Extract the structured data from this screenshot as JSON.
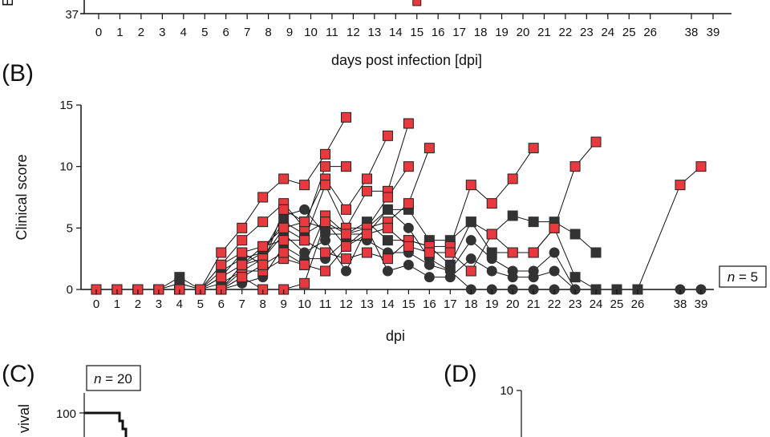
{
  "colors": {
    "red_marker": "#e8393e",
    "dark_marker": "#333333",
    "line": "#111111"
  },
  "panel_a": {
    "label": "",
    "ylabel_fragment": "E",
    "y_tick": "37",
    "xlabel": "days post infection [dpi]",
    "x_ticks": [
      "0",
      "1",
      "2",
      "3",
      "4",
      "5",
      "6",
      "7",
      "8",
      "9",
      "10",
      "11",
      "12",
      "13",
      "14",
      "15",
      "16",
      "17",
      "18",
      "19",
      "20",
      "21",
      "22",
      "23",
      "24",
      "25",
      "26",
      "38",
      "39"
    ],
    "visible_points": [
      {
        "day": 15,
        "marker": "red-square"
      }
    ]
  },
  "chart_data": [
    {
      "type": "line",
      "panel": "(B)",
      "ylabel": "Clinical score",
      "xlabel": "dpi",
      "annotation": "n = 5",
      "annotation_n": "n",
      "annotation_rest": " = 5",
      "x_ticks": [
        "0",
        "1",
        "2",
        "3",
        "4",
        "5",
        "6",
        "7",
        "8",
        "9",
        "10",
        "11",
        "12",
        "13",
        "14",
        "15",
        "16",
        "17",
        "18",
        "19",
        "20",
        "21",
        "22",
        "23",
        "24",
        "25",
        "26",
        "38",
        "39"
      ],
      "y_ticks": [
        "0",
        "5",
        "10",
        "15"
      ],
      "ylim": [
        0,
        15
      ],
      "grid": false,
      "series": [
        {
          "marker": "red-square",
          "points": [
            [
              0,
              0
            ],
            [
              1,
              0
            ],
            [
              2,
              0
            ],
            [
              3,
              0
            ],
            [
              4,
              0
            ],
            [
              5,
              0
            ],
            [
              6,
              3
            ],
            [
              7,
              5
            ],
            [
              8,
              7.5
            ],
            [
              9,
              9
            ],
            [
              10,
              8.5
            ],
            [
              11,
              11
            ],
            [
              12,
              14
            ]
          ]
        },
        {
          "marker": "red-square",
          "points": [
            [
              0,
              0
            ],
            [
              1,
              0
            ],
            [
              2,
              0
            ],
            [
              3,
              0
            ],
            [
              4,
              0
            ],
            [
              5,
              0
            ],
            [
              6,
              2
            ],
            [
              7,
              4
            ],
            [
              8,
              5.5
            ],
            [
              9,
              7
            ],
            [
              10,
              5
            ],
            [
              11,
              10
            ],
            [
              12,
              10
            ]
          ]
        },
        {
          "marker": "red-square",
          "points": [
            [
              0,
              0
            ],
            [
              1,
              0
            ],
            [
              2,
              0
            ],
            [
              3,
              0
            ],
            [
              4,
              0
            ],
            [
              5,
              0
            ],
            [
              6,
              1
            ],
            [
              7,
              3
            ],
            [
              8,
              2
            ],
            [
              9,
              6.5
            ],
            [
              10,
              5.5
            ],
            [
              11,
              9
            ],
            [
              12,
              6.5
            ],
            [
              13,
              9
            ],
            [
              14,
              12.5
            ]
          ]
        },
        {
          "marker": "red-square",
          "points": [
            [
              0,
              0
            ],
            [
              1,
              0
            ],
            [
              2,
              0
            ],
            [
              3,
              0
            ],
            [
              4,
              0
            ],
            [
              5,
              0
            ],
            [
              6,
              0
            ],
            [
              7,
              2
            ],
            [
              8,
              3.5
            ],
            [
              9,
              4
            ],
            [
              10,
              4
            ],
            [
              11,
              8.5
            ],
            [
              12,
              5
            ],
            [
              13,
              8
            ],
            [
              14,
              8
            ],
            [
              15,
              13.5
            ]
          ]
        },
        {
          "marker": "red-square",
          "points": [
            [
              0,
              0
            ],
            [
              1,
              0
            ],
            [
              2,
              0
            ],
            [
              3,
              0
            ],
            [
              4,
              0
            ],
            [
              5,
              0
            ],
            [
              6,
              0
            ],
            [
              7,
              1.5
            ],
            [
              8,
              1.5
            ],
            [
              9,
              2.5
            ],
            [
              10,
              2
            ],
            [
              11,
              6
            ],
            [
              12,
              4.5
            ],
            [
              13,
              5
            ],
            [
              14,
              7.5
            ],
            [
              15,
              10
            ]
          ]
        },
        {
          "marker": "red-square",
          "points": [
            [
              0,
              0
            ],
            [
              1,
              0
            ],
            [
              2,
              0
            ],
            [
              3,
              0
            ],
            [
              4,
              0
            ],
            [
              5,
              0
            ],
            [
              6,
              0
            ],
            [
              7,
              1
            ],
            [
              8,
              0
            ],
            [
              9,
              0
            ],
            [
              10,
              0.5
            ],
            [
              11,
              5.5
            ],
            [
              12,
              3.5
            ],
            [
              13,
              5
            ],
            [
              14,
              5.5
            ],
            [
              15,
              7
            ],
            [
              16,
              11.5
            ]
          ]
        },
        {
          "marker": "red-square",
          "points": [
            [
              0,
              0
            ],
            [
              1,
              0
            ],
            [
              2,
              0
            ],
            [
              3,
              0
            ],
            [
              4,
              0
            ],
            [
              5,
              0
            ],
            [
              6,
              0
            ],
            [
              7,
              2
            ],
            [
              8,
              2.5
            ],
            [
              9,
              5
            ],
            [
              10,
              4
            ],
            [
              11,
              3
            ],
            [
              12,
              2.5
            ],
            [
              13,
              3
            ],
            [
              14,
              2.5
            ],
            [
              15,
              4
            ],
            [
              16,
              3.5
            ],
            [
              17,
              3.5
            ],
            [
              18,
              8.5
            ],
            [
              19,
              7
            ],
            [
              20,
              9
            ],
            [
              21,
              11.5
            ]
          ]
        },
        {
          "marker": "red-square",
          "points": [
            [
              0,
              0
            ],
            [
              1,
              0
            ],
            [
              2,
              0
            ],
            [
              3,
              0
            ],
            [
              4,
              0
            ],
            [
              5,
              0
            ],
            [
              6,
              0
            ],
            [
              7,
              1
            ],
            [
              8,
              2
            ],
            [
              9,
              3
            ],
            [
              10,
              2
            ],
            [
              11,
              1.5
            ],
            [
              12,
              3.5
            ],
            [
              13,
              4.5
            ],
            [
              14,
              5
            ],
            [
              15,
              3.5
            ],
            [
              16,
              3
            ],
            [
              17,
              3
            ],
            [
              18,
              1.5
            ],
            [
              19,
              4.5
            ],
            [
              20,
              3
            ],
            [
              21,
              3
            ],
            [
              22,
              5
            ],
            [
              23,
              10
            ],
            [
              24,
              12
            ]
          ]
        },
        {
          "marker": "dark-square",
          "red_from_day": 38,
          "points": [
            [
              0,
              0
            ],
            [
              1,
              0
            ],
            [
              2,
              0
            ],
            [
              3,
              0
            ],
            [
              4,
              0.5
            ],
            [
              5,
              0
            ],
            [
              6,
              1
            ],
            [
              7,
              2
            ],
            [
              8,
              3
            ],
            [
              9,
              5.5
            ],
            [
              10,
              4.5
            ],
            [
              11,
              5.5
            ],
            [
              12,
              4.5
            ],
            [
              13,
              5.5
            ],
            [
              14,
              4
            ],
            [
              15,
              4
            ],
            [
              16,
              3.5
            ],
            [
              17,
              2
            ],
            [
              18,
              5.5
            ],
            [
              19,
              3
            ],
            [
              20,
              3
            ],
            [
              21,
              3
            ],
            [
              22,
              5
            ],
            [
              23,
              1
            ],
            [
              24,
              0
            ],
            [
              25,
              0
            ],
            [
              26,
              0
            ],
            [
              38,
              8.5
            ],
            [
              39,
              10
            ]
          ]
        },
        {
          "marker": "dark-square",
          "points": [
            [
              0,
              0
            ],
            [
              1,
              0
            ],
            [
              2,
              0
            ],
            [
              3,
              0
            ],
            [
              4,
              1
            ],
            [
              5,
              0
            ],
            [
              6,
              2
            ],
            [
              7,
              3
            ],
            [
              8,
              3.5
            ],
            [
              9,
              5
            ],
            [
              10,
              5.5
            ],
            [
              11,
              5
            ],
            [
              12,
              5
            ],
            [
              13,
              5
            ],
            [
              14,
              6.5
            ],
            [
              15,
              6.5
            ],
            [
              16,
              4
            ],
            [
              17,
              4
            ],
            [
              18,
              5.5
            ],
            [
              19,
              4.5
            ],
            [
              20,
              6
            ],
            [
              21,
              5.5
            ],
            [
              22,
              5.5
            ],
            [
              23,
              4.5
            ],
            [
              24,
              3
            ]
          ]
        },
        {
          "marker": "dark-circle",
          "points": [
            [
              0,
              0
            ],
            [
              1,
              0
            ],
            [
              2,
              0
            ],
            [
              3,
              0
            ],
            [
              4,
              0
            ],
            [
              5,
              0
            ],
            [
              6,
              1.5
            ],
            [
              7,
              2.5
            ],
            [
              8,
              3
            ],
            [
              9,
              6
            ],
            [
              10,
              6.5
            ],
            [
              11,
              4.5
            ],
            [
              12,
              4.5
            ],
            [
              13,
              4.5
            ],
            [
              14,
              6.5
            ],
            [
              15,
              5
            ],
            [
              16,
              2.5
            ],
            [
              17,
              1.5
            ],
            [
              18,
              4
            ],
            [
              19,
              2.5
            ],
            [
              20,
              1.5
            ],
            [
              21,
              1.5
            ],
            [
              22,
              3
            ],
            [
              23,
              0
            ],
            [
              24,
              0
            ],
            [
              25,
              0
            ],
            [
              26,
              0
            ],
            [
              38,
              0
            ],
            [
              39,
              0
            ]
          ]
        },
        {
          "marker": "dark-circle",
          "points": [
            [
              0,
              0
            ],
            [
              1,
              0
            ],
            [
              2,
              0
            ],
            [
              3,
              0
            ],
            [
              4,
              0
            ],
            [
              5,
              0
            ],
            [
              6,
              0.5
            ],
            [
              7,
              1.5
            ],
            [
              8,
              2.5
            ],
            [
              9,
              4.5
            ],
            [
              10,
              3
            ],
            [
              11,
              4
            ],
            [
              12,
              1.5
            ],
            [
              13,
              5
            ],
            [
              14,
              1.5
            ],
            [
              15,
              2
            ],
            [
              16,
              1
            ],
            [
              17,
              1
            ],
            [
              18,
              2.5
            ],
            [
              19,
              1.5
            ],
            [
              20,
              1
            ],
            [
              21,
              1
            ],
            [
              22,
              1.5
            ],
            [
              23,
              0
            ]
          ]
        },
        {
          "marker": "dark-circle",
          "points": [
            [
              0,
              0
            ],
            [
              1,
              0
            ],
            [
              2,
              0
            ],
            [
              3,
              0
            ],
            [
              4,
              0
            ],
            [
              5,
              0
            ],
            [
              6,
              0
            ],
            [
              7,
              0.5
            ],
            [
              8,
              1
            ],
            [
              9,
              3.5
            ],
            [
              10,
              2.5
            ],
            [
              11,
              2.5
            ],
            [
              12,
              4
            ],
            [
              13,
              4
            ],
            [
              14,
              3
            ],
            [
              15,
              3
            ],
            [
              16,
              2
            ],
            [
              17,
              1.5
            ],
            [
              18,
              0
            ],
            [
              19,
              0
            ],
            [
              20,
              0
            ],
            [
              21,
              0
            ],
            [
              22,
              0
            ]
          ]
        }
      ]
    },
    {
      "type": "line",
      "panel": "(C)",
      "ylabel_fragment": "vival",
      "annotation_n": "n",
      "annotation_rest": " = 20",
      "y_ticks": [
        "100"
      ]
    },
    {
      "type": "other",
      "panel": "(D)",
      "y_ticks": [
        "10"
      ]
    }
  ]
}
